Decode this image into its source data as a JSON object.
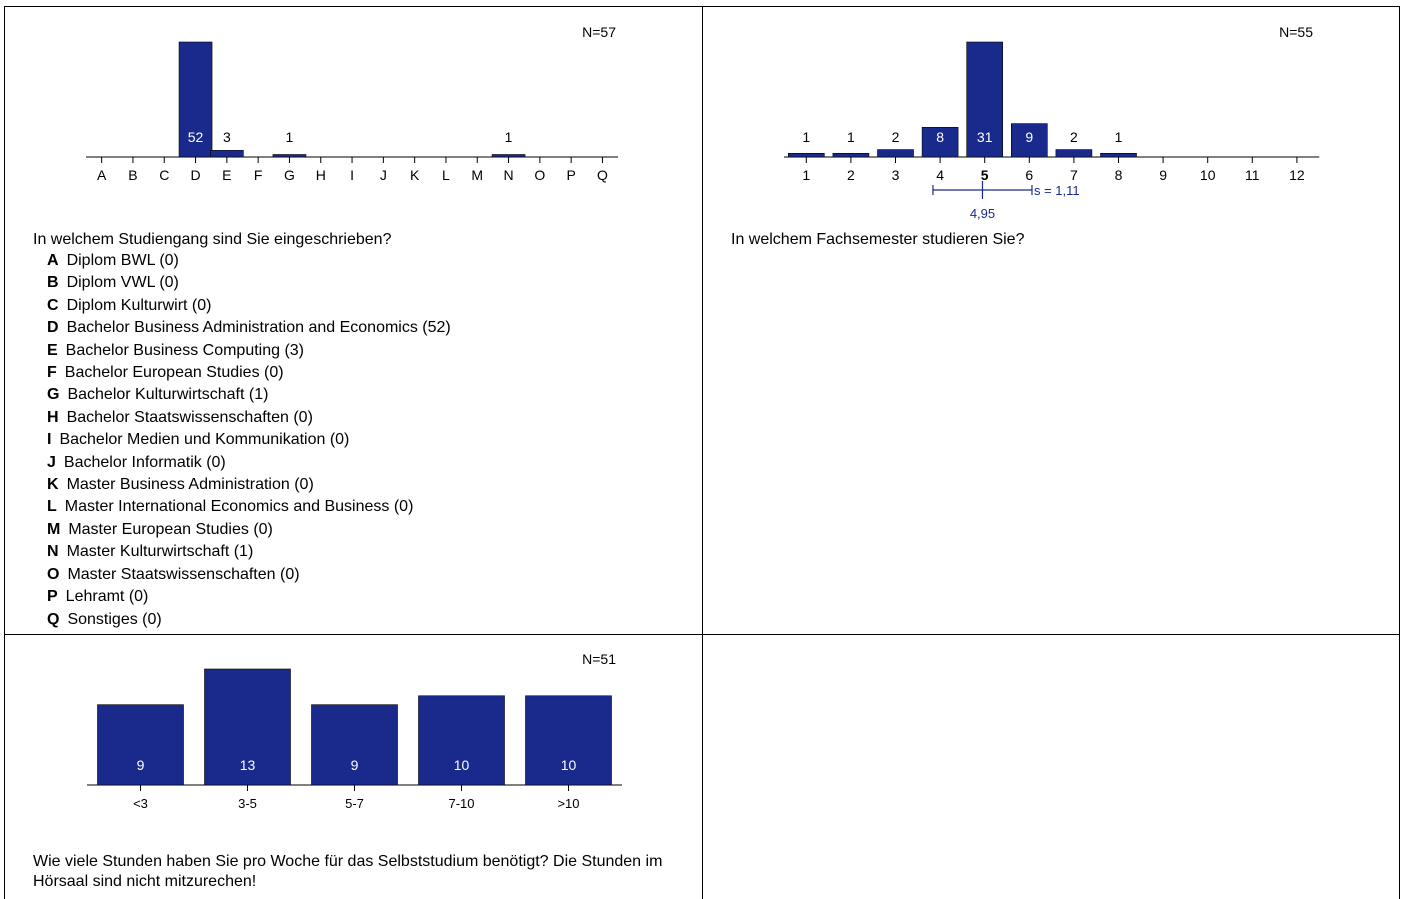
{
  "chart_data": [
    {
      "type": "bar",
      "n_label": "N=57",
      "categories": [
        "A",
        "B",
        "C",
        "D",
        "E",
        "F",
        "G",
        "H",
        "I",
        "J",
        "K",
        "L",
        "M",
        "N",
        "O",
        "P",
        "Q"
      ],
      "values": [
        0,
        0,
        0,
        52,
        3,
        0,
        1,
        0,
        0,
        0,
        0,
        0,
        0,
        1,
        0,
        0,
        0
      ],
      "question": "In welchem Studiengang sind Sie eingeschrieben?",
      "legend": [
        {
          "key": "A",
          "label": "Diplom BWL (0)"
        },
        {
          "key": "B",
          "label": "Diplom VWL (0)"
        },
        {
          "key": "C",
          "label": "Diplom Kulturwirt (0)"
        },
        {
          "key": "D",
          "label": "Bachelor Business Administration and Economics (52)"
        },
        {
          "key": "E",
          "label": "Bachelor Business Computing (3)"
        },
        {
          "key": "F",
          "label": "Bachelor European Studies (0)"
        },
        {
          "key": "G",
          "label": "Bachelor Kulturwirtschaft (1)"
        },
        {
          "key": "H",
          "label": "Bachelor Staatswissenschaften (0)"
        },
        {
          "key": "I",
          "label": "Bachelor Medien und Kommunikation (0)"
        },
        {
          "key": "J",
          "label": "Bachelor Informatik (0)"
        },
        {
          "key": "K",
          "label": "Master Business Administration (0)"
        },
        {
          "key": "L",
          "label": "Master International Economics and Business (0)"
        },
        {
          "key": "M",
          "label": "Master European Studies (0)"
        },
        {
          "key": "N",
          "label": "Master Kulturwirtschaft (1)"
        },
        {
          "key": "O",
          "label": "Master Staatswissenschaften (0)"
        },
        {
          "key": "P",
          "label": "Lehramt (0)"
        },
        {
          "key": "Q",
          "label": "Sonstiges (0)"
        }
      ]
    },
    {
      "type": "bar",
      "n_label": "N=55",
      "categories": [
        "1",
        "2",
        "3",
        "4",
        "5",
        "6",
        "7",
        "8",
        "9",
        "10",
        "11",
        "12"
      ],
      "values": [
        1,
        1,
        2,
        8,
        31,
        9,
        2,
        1,
        0,
        0,
        0,
        0
      ],
      "mean": 4.95,
      "mean_label": "4,95",
      "sd_label": "s = 1,11",
      "median_category": "5",
      "question": "In welchem Fachsemester studieren Sie?"
    },
    {
      "type": "bar",
      "n_label": "N=51",
      "categories": [
        "<3",
        "3-5",
        "5-7",
        "7-10",
        ">10"
      ],
      "values": [
        9,
        13,
        9,
        10,
        10
      ],
      "question": "Wie viele Stunden haben Sie pro Woche für das Selbststudium benötigt? Die Stunden im Hörsaal sind nicht mitzurechen!"
    }
  ],
  "colors": {
    "bar": "#1a2a8c",
    "mean_marker": "#1a2a8c"
  }
}
